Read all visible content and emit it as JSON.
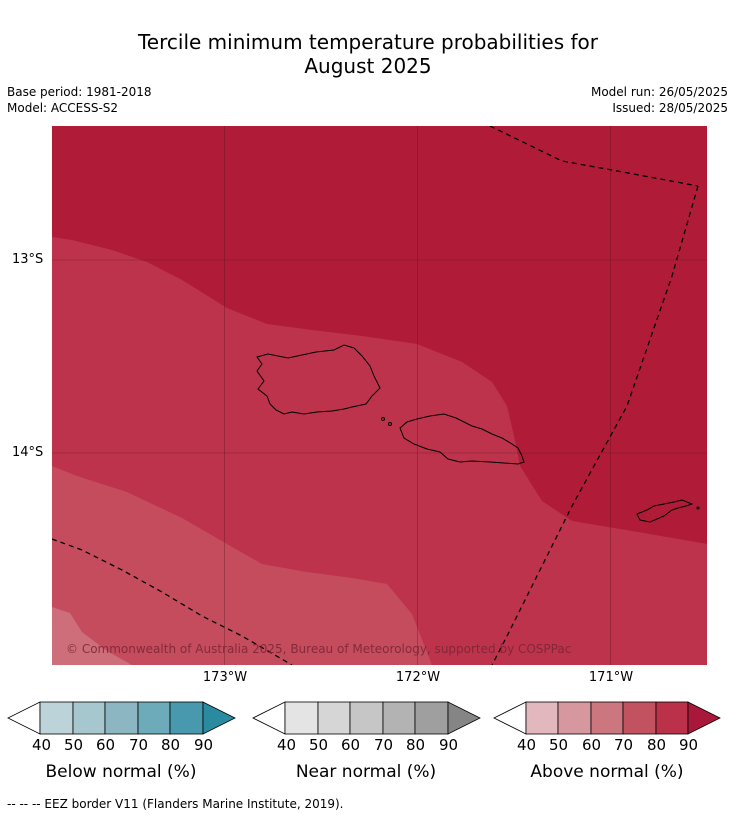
{
  "title": {
    "line1": "Tercile minimum temperature probabilities for",
    "line2": "August 2025"
  },
  "meta": {
    "base_period": "Base period: 1981-2018",
    "model": "Model: ACCESS-S2",
    "model_run": "Model run: 26/05/2025",
    "issued": "Issued: 28/05/2025"
  },
  "map": {
    "copyright": "© Commonwealth of Australia 2025, Bureau of Meteorology, supported by COSPPac",
    "lat_labels": [
      "13°S",
      "14°S"
    ],
    "lon_labels": [
      "173°W",
      "172°W",
      "171°W"
    ],
    "colors": {
      "above_90": "#b01c38",
      "above_80": "#bd334c",
      "above_70": "#c44c5c",
      "above_60": "#cd6e7a",
      "gridline": "#5a1420",
      "coast": "#000000"
    }
  },
  "colorbars": [
    {
      "title": "Below normal (%)",
      "ticks": [
        "40",
        "50",
        "60",
        "70",
        "80",
        "90"
      ],
      "colors": [
        "#ffffff",
        "#bdd3da",
        "#a6c7cd",
        "#8bb6c2",
        "#6eabba",
        "#4899ad",
        "#2a8aa0"
      ]
    },
    {
      "title": "Near normal (%)",
      "ticks": [
        "40",
        "50",
        "60",
        "70",
        "80",
        "90"
      ],
      "colors": [
        "#ffffff",
        "#e4e4e4",
        "#d6d6d6",
        "#c6c6c6",
        "#b3b3b3",
        "#9f9f9f",
        "#858585"
      ]
    },
    {
      "title": "Above normal (%)",
      "ticks": [
        "40",
        "50",
        "60",
        "70",
        "80",
        "90"
      ],
      "colors": [
        "#ffffff",
        "#e2b8be",
        "#d7979f",
        "#cc7780",
        "#c2525f",
        "#bb3149",
        "#a9173a"
      ]
    }
  ],
  "legend_note": "--  --  -- EEZ border V11 (Flanders Marine Institute, 2019)."
}
